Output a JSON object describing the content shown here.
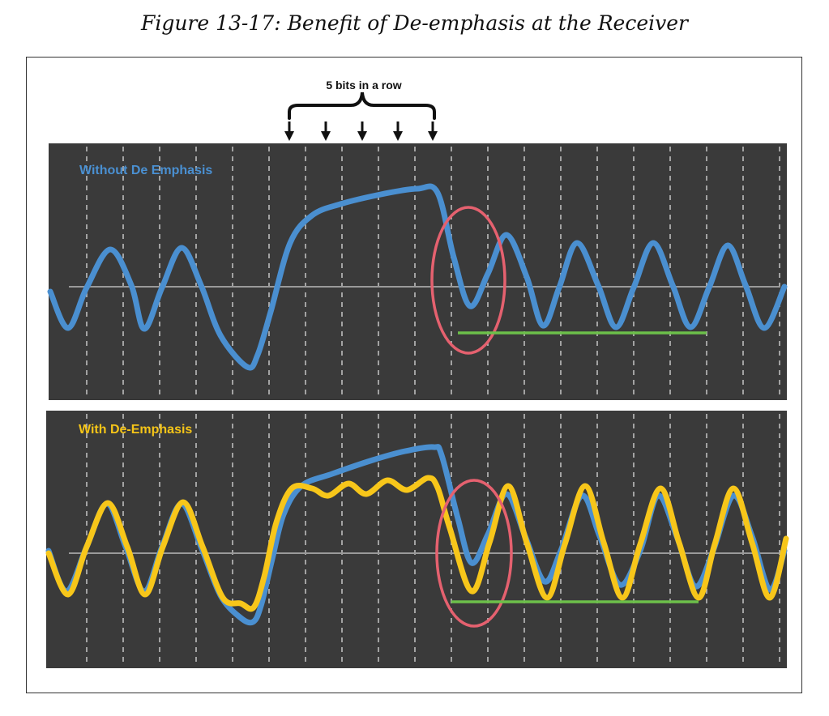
{
  "figure_caption": "Figure 13-17: Benefit of De-emphasis at the Receiver",
  "annotation": "5 bits in a row",
  "panels": [
    {
      "label": "Without De Emphasis",
      "label_color": "#4a90d2"
    },
    {
      "label": "With De-Emphasis",
      "label_color": "#f5c518"
    }
  ],
  "colors": {
    "panel_background": "#3a3a3a",
    "blue_signal": "#4a8fd0",
    "yellow_signal": "#f7c61a",
    "highlight_ellipse": "#e5616f",
    "reference_line": "#6cc04a",
    "grid_line": "#bdbdbd",
    "baseline": "#9a9a9a"
  }
}
